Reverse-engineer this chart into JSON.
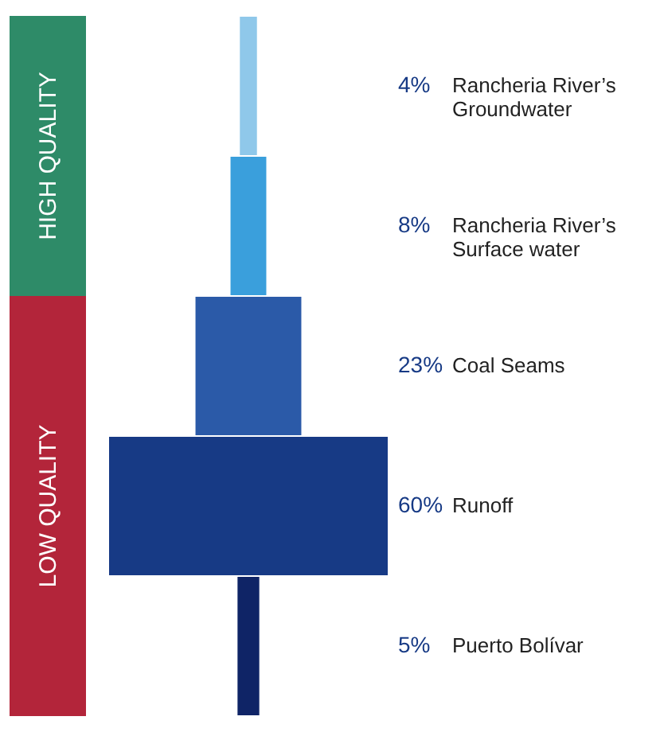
{
  "chart_data": {
    "type": "other",
    "categories": [
      "Rancheria River’s Groundwater",
      "Rancheria River’s Surface water",
      "Coal Seams",
      "Runoff",
      "Puerto Bolívar"
    ],
    "values": [
      4,
      8,
      23,
      60,
      5
    ],
    "value_labels": [
      "4%",
      "8%",
      "23%",
      "60%",
      "5%"
    ],
    "colors": [
      "#8fc8ea",
      "#3a9fdc",
      "#2b5aa8",
      "#173a85",
      "#0f2466"
    ],
    "annotations": [
      "HIGH QUALITY",
      "LOW QUALITY"
    ]
  }
}
